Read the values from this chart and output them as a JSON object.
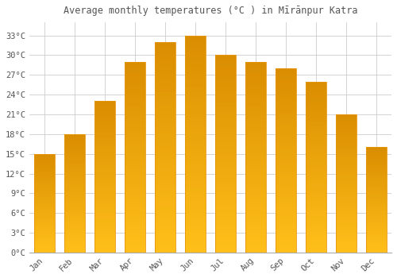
{
  "title": "Average monthly temperatures (°C ) in Mīrānpur Katra",
  "months": [
    "Jan",
    "Feb",
    "Mar",
    "Apr",
    "May",
    "Jun",
    "Jul",
    "Aug",
    "Sep",
    "Oct",
    "Nov",
    "Dec"
  ],
  "values": [
    15,
    18,
    23,
    29,
    32,
    33,
    30,
    29,
    28,
    26,
    21,
    16
  ],
  "bar_color_top": "#FFAA00",
  "bar_color_bottom": "#FFD966",
  "bar_edge_color": "#E8960A",
  "background_color": "#FFFFFF",
  "grid_color": "#CCCCCC",
  "text_color": "#555555",
  "yticks": [
    0,
    3,
    6,
    9,
    12,
    15,
    18,
    21,
    24,
    27,
    30,
    33
  ],
  "ylim": [
    0,
    35
  ],
  "ylabel_suffix": "°C"
}
